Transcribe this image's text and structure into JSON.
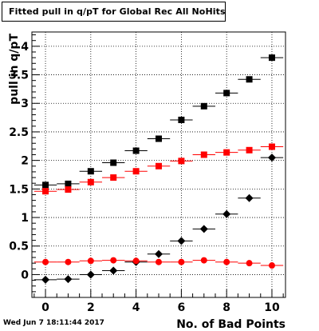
{
  "chart_data": {
    "type": "scatter",
    "title": "Fitted pull in q/pT for Global Rec All NoHits",
    "xlabel": "No. of Bad Points",
    "ylabel": "pull in q/pT",
    "xlim": [
      -0.6,
      10.6
    ],
    "ylim": [
      -0.4,
      4.25
    ],
    "x_ticks": [
      0,
      2,
      4,
      6,
      8,
      10
    ],
    "y_ticks": [
      0,
      0.5,
      1,
      1.5,
      2,
      2.5,
      3,
      3.5,
      4
    ],
    "x_tick_labels": [
      "0",
      "2",
      "4",
      "6",
      "8",
      "10"
    ],
    "y_tick_labels": [
      "0",
      "0.5",
      "1",
      "1.5",
      "2",
      "2.5",
      "3",
      "3.5",
      "4"
    ],
    "grid": true,
    "x": [
      0,
      1,
      2,
      3,
      4,
      5,
      6,
      7,
      8,
      9,
      10
    ],
    "series": [
      {
        "marker": "square",
        "color": "#000000",
        "values": [
          1.57,
          1.59,
          1.81,
          1.96,
          2.17,
          2.38,
          2.71,
          2.95,
          3.18,
          3.42,
          3.8
        ]
      },
      {
        "marker": "square",
        "color": "#ff0000",
        "values": [
          1.46,
          1.49,
          1.62,
          1.7,
          1.81,
          1.9,
          1.99,
          2.1,
          2.14,
          2.18,
          2.24
        ]
      },
      {
        "marker": "diamond",
        "color": "#000000",
        "values": [
          -0.09,
          -0.08,
          0.0,
          0.07,
          0.22,
          0.36,
          0.59,
          0.8,
          1.06,
          1.34,
          2.05
        ]
      },
      {
        "marker": "circle",
        "color": "#ff0000",
        "values": [
          0.22,
          0.22,
          0.24,
          0.25,
          0.24,
          0.22,
          0.22,
          0.25,
          0.22,
          0.2,
          0.16
        ]
      }
    ],
    "timestamp": "Wed Jun  7 18:11:44 2017"
  }
}
